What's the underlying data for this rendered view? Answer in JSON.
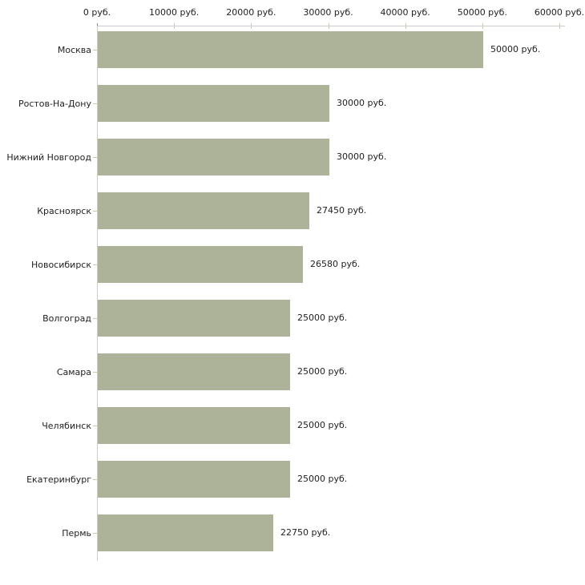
{
  "chart_data": {
    "type": "bar",
    "orientation": "horizontal",
    "title": "",
    "categories": [
      "Москва",
      "Ростов-На-Дону",
      "Нижний Новгород",
      "Красноярск",
      "Новосибирск",
      "Волгоград",
      "Самара",
      "Челябинск",
      "Екатеринбург",
      "Пермь"
    ],
    "values": [
      50000,
      30000,
      30000,
      27450,
      26580,
      25000,
      25000,
      25000,
      25000,
      22750
    ],
    "value_labels": [
      "50000 руб.",
      "30000 руб.",
      "30000 руб.",
      "27450 руб.",
      "26580 руб.",
      "25000 руб.",
      "25000 руб.",
      "25000 руб.",
      "25000 руб.",
      "22750 руб."
    ],
    "unit": "руб.",
    "x_axis": {
      "position": "top",
      "min": 0,
      "max": 60000,
      "ticks": [
        0,
        10000,
        20000,
        30000,
        40000,
        50000,
        60000
      ],
      "tick_labels": [
        "0 руб.",
        "10000 руб.",
        "20000 руб.",
        "30000 руб.",
        "40000 руб.",
        "50000 руб.",
        "60000 руб."
      ]
    },
    "grid": false,
    "legend": false,
    "colors": {
      "bar": "#acb398",
      "axis_line": "#cccccc",
      "tick_mark": "#c4caae",
      "first_tick_mark": "#8b8c76",
      "text": "#222222",
      "background": "#ffffff"
    }
  }
}
